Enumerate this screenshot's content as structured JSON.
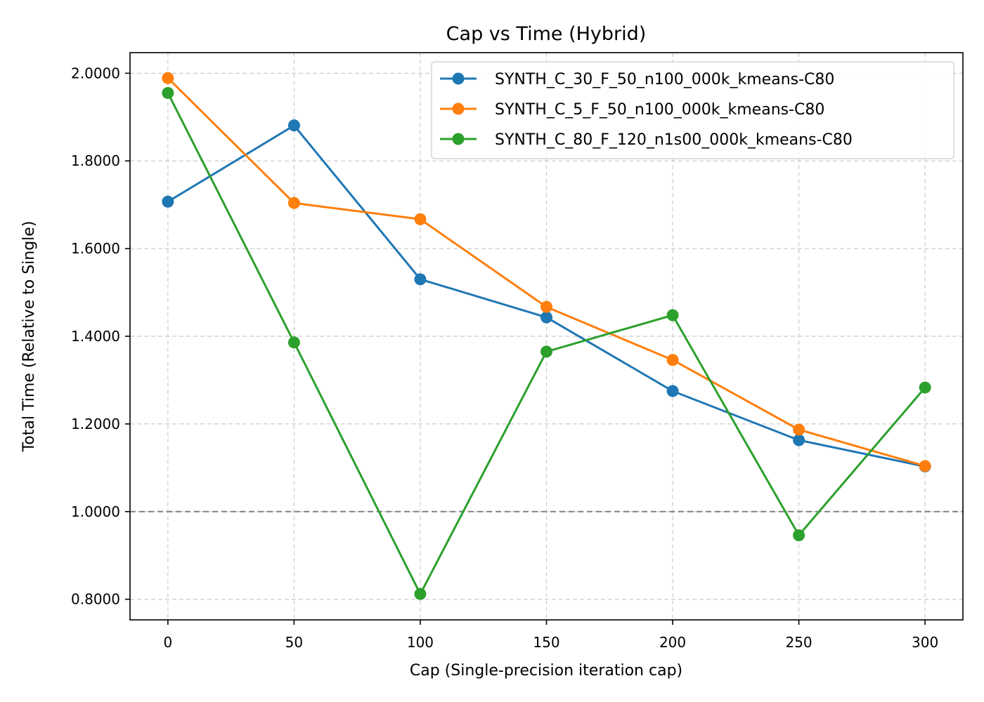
{
  "chart_data": {
    "type": "line",
    "title": "Cap vs Time (Hybrid)",
    "xlabel": "Cap (Single-precision iteration cap)",
    "ylabel": "Total Time (Relative to Single)",
    "x": [
      0,
      50,
      100,
      150,
      200,
      250,
      300
    ],
    "xlim": [
      -15,
      315
    ],
    "ylim": [
      0.753,
      2.047
    ],
    "xticks": [
      0,
      50,
      100,
      150,
      200,
      250,
      300
    ],
    "yticks": [
      0.8,
      1.0,
      1.2,
      1.4,
      1.6,
      1.8,
      2.0
    ],
    "xtick_labels": [
      "0",
      "50",
      "100",
      "150",
      "200",
      "250",
      "300"
    ],
    "ytick_labels": [
      "0.8000",
      "1.0000",
      "1.2000",
      "1.4000",
      "1.6000",
      "1.8000",
      "2.0000"
    ],
    "grid": true,
    "reference_line": {
      "y": 1.0,
      "style": "dashed",
      "color": "#808080"
    },
    "legend_position": "top-right",
    "series": [
      {
        "name": "SYNTH_C_30_F_50_n100_000k_kmeans-C80",
        "color": "#1f77b4",
        "values": [
          1.707,
          1.881,
          1.53,
          1.443,
          1.275,
          1.163,
          1.103
        ]
      },
      {
        "name": "SYNTH_C_5_F_50_n100_000k_kmeans-C80",
        "color": "#ff7f0e",
        "values": [
          1.989,
          1.704,
          1.667,
          1.467,
          1.346,
          1.187,
          1.104
        ]
      },
      {
        "name": "SYNTH_C_80_F_120_n1s00_000k_kmeans-C80",
        "color": "#2ca02c",
        "values": [
          1.955,
          1.386,
          0.812,
          1.365,
          1.448,
          0.946,
          1.283
        ]
      }
    ]
  }
}
